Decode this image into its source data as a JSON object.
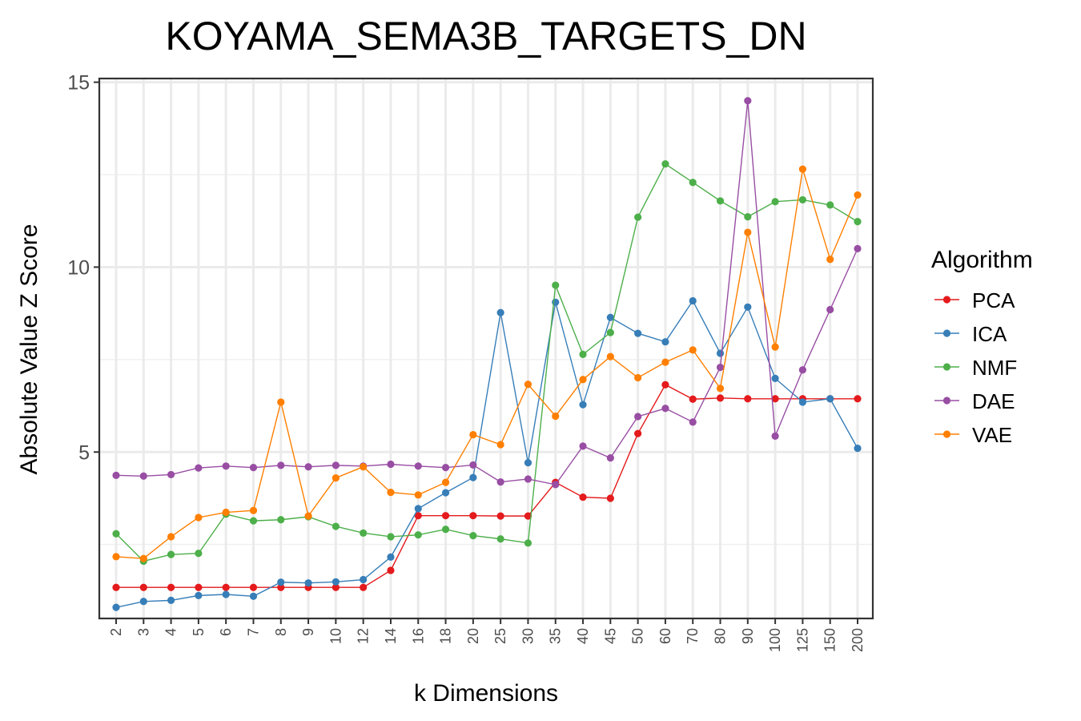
{
  "chart_data": {
    "type": "line",
    "title": "KOYAMA_SEMA3B_TARGETS_DN",
    "xlabel": "k Dimensions",
    "ylabel": "Absolute Value Z Score",
    "categories": [
      "2",
      "3",
      "4",
      "5",
      "6",
      "7",
      "8",
      "9",
      "10",
      "12",
      "14",
      "16",
      "18",
      "20",
      "25",
      "30",
      "35",
      "40",
      "45",
      "50",
      "60",
      "70",
      "80",
      "90",
      "100",
      "125",
      "150",
      "200"
    ],
    "yticks": [
      5,
      10,
      15
    ],
    "ylim": [
      0.5,
      15.1
    ],
    "grid": true,
    "legend": {
      "title": "Algorithm",
      "position": "right"
    },
    "series": [
      {
        "name": "PCA",
        "color": "#e41a1c",
        "values": [
          1.34,
          1.34,
          1.34,
          1.34,
          1.34,
          1.34,
          1.34,
          1.34,
          1.34,
          1.34,
          1.8,
          3.28,
          3.28,
          3.28,
          3.27,
          3.27,
          4.18,
          3.78,
          3.75,
          5.5,
          6.82,
          6.43,
          6.46,
          6.44,
          6.44,
          6.44,
          6.44,
          6.44
        ]
      },
      {
        "name": "ICA",
        "color": "#377eb8",
        "values": [
          0.8,
          0.96,
          0.99,
          1.12,
          1.15,
          1.1,
          1.48,
          1.46,
          1.49,
          1.55,
          2.16,
          3.47,
          3.9,
          4.31,
          8.77,
          4.71,
          9.05,
          6.28,
          8.64,
          8.21,
          7.98,
          9.09,
          7.67,
          8.92,
          6.99,
          6.35,
          6.44,
          5.1
        ]
      },
      {
        "name": "NMF",
        "color": "#4daf4a",
        "values": [
          2.79,
          2.05,
          2.23,
          2.26,
          3.32,
          3.14,
          3.17,
          3.25,
          2.99,
          2.81,
          2.71,
          2.76,
          2.91,
          2.74,
          2.65,
          2.54,
          9.51,
          7.64,
          8.23,
          11.35,
          12.79,
          12.29,
          11.79,
          11.36,
          11.77,
          11.82,
          11.68,
          11.23
        ]
      },
      {
        "name": "DAE",
        "color": "#984ea3",
        "values": [
          4.37,
          4.35,
          4.39,
          4.57,
          4.62,
          4.58,
          4.64,
          4.6,
          4.64,
          4.62,
          4.67,
          4.62,
          4.58,
          4.65,
          4.19,
          4.27,
          4.12,
          5.16,
          4.84,
          5.96,
          6.18,
          5.81,
          7.29,
          14.5,
          5.43,
          7.22,
          8.85,
          10.5
        ]
      },
      {
        "name": "VAE",
        "color": "#ff7f00",
        "values": [
          2.17,
          2.12,
          2.71,
          3.23,
          3.37,
          3.42,
          6.35,
          3.27,
          4.3,
          4.6,
          3.91,
          3.84,
          4.18,
          5.47,
          5.2,
          6.83,
          5.97,
          6.96,
          7.58,
          7.01,
          7.43,
          7.76,
          6.72,
          10.94,
          7.84,
          12.65,
          10.21,
          11.95
        ]
      }
    ]
  }
}
